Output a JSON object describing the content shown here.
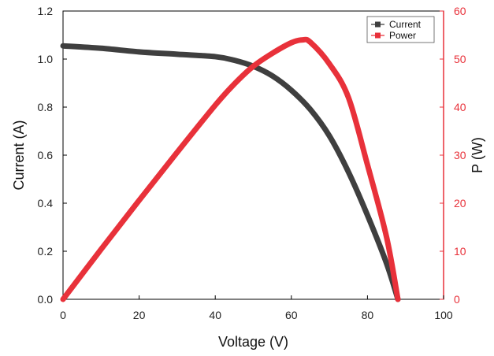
{
  "chart_data": {
    "type": "line",
    "title": "",
    "xlabel": "Voltage (V)",
    "ylabel_left": "Current (A)",
    "ylabel_right": "P (W)",
    "xlim": [
      0,
      100
    ],
    "ylim_left": [
      0,
      1.2
    ],
    "ylim_right": [
      0,
      60
    ],
    "x_ticks": [
      "0",
      "20",
      "40",
      "60",
      "80",
      "100"
    ],
    "y_left_ticks": [
      "0.0",
      "0.2",
      "0.4",
      "0.6",
      "0.8",
      "1.0",
      "1.2"
    ],
    "y_right_ticks": [
      "0",
      "10",
      "20",
      "30",
      "40",
      "50",
      "60"
    ],
    "grid": false,
    "legend_position": "top-right",
    "colors": {
      "current": "#3f3f3f",
      "power": "#e8313a",
      "right_axis": "#e8313a"
    },
    "series": [
      {
        "name": "Current",
        "axis": "left",
        "x": [
          0,
          10,
          20,
          30,
          40,
          45,
          50,
          55,
          60,
          65,
          70,
          75,
          80,
          85,
          88
        ],
        "values": [
          1.055,
          1.045,
          1.03,
          1.02,
          1.01,
          0.995,
          0.97,
          0.93,
          0.87,
          0.79,
          0.68,
          0.53,
          0.35,
          0.15,
          0.0
        ]
      },
      {
        "name": "Power",
        "axis": "right",
        "x": [
          0,
          10,
          20,
          30,
          40,
          45,
          50,
          55,
          60,
          63,
          65,
          70,
          75,
          80,
          85,
          88
        ],
        "values": [
          0,
          10.4,
          20.6,
          30.6,
          40.4,
          44.8,
          48.5,
          51.2,
          53.4,
          54,
          53.5,
          49,
          42,
          28,
          13,
          0
        ]
      }
    ]
  }
}
